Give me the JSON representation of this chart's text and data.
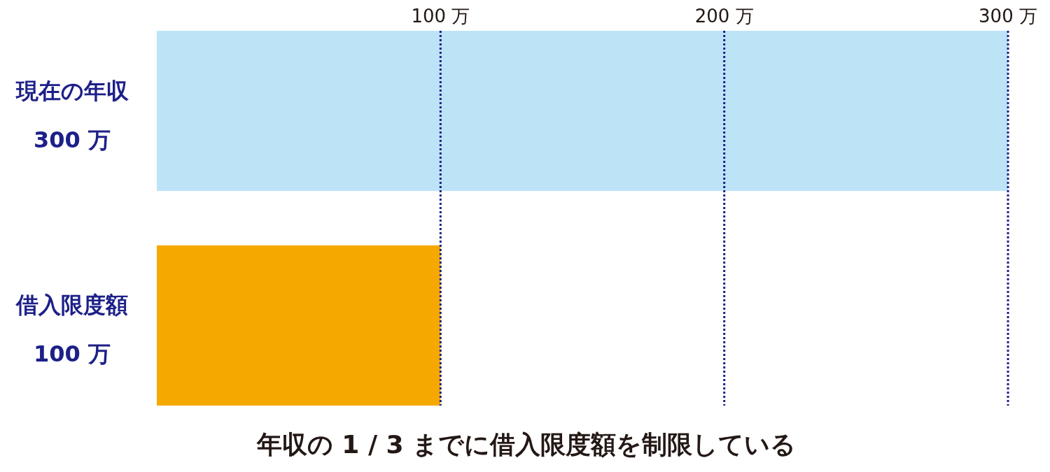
{
  "chart_data": {
    "type": "bar",
    "orientation": "horizontal",
    "categories": [
      "現在の年収",
      "借入限度額"
    ],
    "values": [
      300,
      100
    ],
    "value_labels": [
      "300 万",
      "100 万"
    ],
    "colors": [
      "#bde3f7",
      "#f5a800"
    ],
    "xlim": [
      0,
      300
    ],
    "xticks": [
      {
        "value": 100,
        "label": "100 万"
      },
      {
        "value": 200,
        "label": "200 万"
      },
      {
        "value": 300,
        "label": "300 万"
      }
    ],
    "grid": "x",
    "line_style": "dotted",
    "annotations": [
      "年収の 1 / 3 までに借入限度額を制限している"
    ]
  }
}
